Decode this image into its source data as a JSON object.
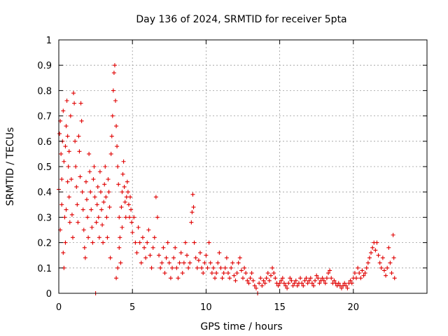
{
  "chart_data": {
    "type": "scatter",
    "title": "Day 136 of 2024, SRMTID for receiver 5pta",
    "xlabel": "GPS time / hours",
    "ylabel": "SRMTID / TECUs",
    "xlim": [
      0,
      25
    ],
    "ylim": [
      0,
      1
    ],
    "x_ticks": [
      "0",
      "5",
      "10",
      "15",
      "20"
    ],
    "y_ticks": [
      "0",
      "0.1",
      "0.2",
      "0.3",
      "0.4",
      "0.5",
      "0.6",
      "0.7",
      "0.8",
      "0.9",
      "1"
    ],
    "x_tick_values": [
      0,
      5,
      10,
      15,
      20
    ],
    "y_tick_values": [
      0,
      0.1,
      0.2,
      0.3,
      0.4,
      0.5,
      0.6,
      0.7,
      0.8,
      0.9,
      1
    ],
    "grid": true,
    "marker": "plus",
    "series": [
      {
        "name": "SRMTID",
        "color": "#e00000",
        "points": [
          [
            0.0,
            0.41
          ],
          [
            0.05,
            0.63
          ],
          [
            0.1,
            0.68
          ],
          [
            0.15,
            0.55
          ],
          [
            0.2,
            0.45
          ],
          [
            0.25,
            0.6
          ],
          [
            0.3,
            0.72
          ],
          [
            0.35,
            0.52
          ],
          [
            0.4,
            0.3
          ],
          [
            0.45,
            0.58
          ],
          [
            0.5,
            0.66
          ],
          [
            0.55,
            0.76
          ],
          [
            0.6,
            0.62
          ],
          [
            0.65,
            0.5
          ],
          [
            0.7,
            0.38
          ],
          [
            0.75,
            0.28
          ],
          [
            0.1,
            0.25
          ],
          [
            0.2,
            0.35
          ],
          [
            0.3,
            0.16
          ],
          [
            0.35,
            0.1
          ],
          [
            0.45,
            0.2
          ],
          [
            0.5,
            0.33
          ],
          [
            0.6,
            0.44
          ],
          [
            0.7,
            0.56
          ],
          [
            0.8,
            0.7
          ],
          [
            0.85,
            0.45
          ],
          [
            0.9,
            0.31
          ],
          [
            0.95,
            0.22
          ],
          [
            1.0,
            0.79
          ],
          [
            1.05,
            0.75
          ],
          [
            1.1,
            0.6
          ],
          [
            1.15,
            0.5
          ],
          [
            1.2,
            0.42
          ],
          [
            1.25,
            0.35
          ],
          [
            1.3,
            0.28
          ],
          [
            1.35,
            0.62
          ],
          [
            1.4,
            0.56
          ],
          [
            1.45,
            0.46
          ],
          [
            1.5,
            0.75
          ],
          [
            1.55,
            0.68
          ],
          [
            1.6,
            0.4
          ],
          [
            1.65,
            0.33
          ],
          [
            1.7,
            0.25
          ],
          [
            1.75,
            0.18
          ],
          [
            1.8,
            0.14
          ],
          [
            1.85,
            0.44
          ],
          [
            1.9,
            0.37
          ],
          [
            1.95,
            0.3
          ],
          [
            2.0,
            0.22
          ],
          [
            2.05,
            0.55
          ],
          [
            2.1,
            0.48
          ],
          [
            2.15,
            0.4
          ],
          [
            2.2,
            0.33
          ],
          [
            2.25,
            0.26
          ],
          [
            2.3,
            0.2
          ],
          [
            2.35,
            0.45
          ],
          [
            2.4,
            0.5
          ],
          [
            2.45,
            0.38
          ],
          [
            2.5,
            0.0
          ],
          [
            2.55,
            0.28
          ],
          [
            2.6,
            0.35
          ],
          [
            2.65,
            0.42
          ],
          [
            2.7,
            0.3
          ],
          [
            2.75,
            0.22
          ],
          [
            2.8,
            0.48
          ],
          [
            2.85,
            0.4
          ],
          [
            2.9,
            0.33
          ],
          [
            2.95,
            0.27
          ],
          [
            3.0,
            0.2
          ],
          [
            3.05,
            0.36
          ],
          [
            3.1,
            0.43
          ],
          [
            3.15,
            0.5
          ],
          [
            3.2,
            0.38
          ],
          [
            3.25,
            0.3
          ],
          [
            3.3,
            0.22
          ],
          [
            3.35,
            0.45
          ],
          [
            3.4,
            0.4
          ],
          [
            3.45,
            0.34
          ],
          [
            3.5,
            0.14
          ],
          [
            3.55,
            0.55
          ],
          [
            3.6,
            0.62
          ],
          [
            3.65,
            0.7
          ],
          [
            3.7,
            0.8
          ],
          [
            3.75,
            0.87
          ],
          [
            3.8,
            0.9
          ],
          [
            3.85,
            0.76
          ],
          [
            3.9,
            0.66
          ],
          [
            3.95,
            0.58
          ],
          [
            4.0,
            0.5
          ],
          [
            4.05,
            0.43
          ],
          [
            4.1,
            0.3
          ],
          [
            4.15,
            0.22
          ],
          [
            4.2,
            0.12
          ],
          [
            4.25,
            0.34
          ],
          [
            4.3,
            0.4
          ],
          [
            4.35,
            0.47
          ],
          [
            4.4,
            0.52
          ],
          [
            4.45,
            0.42
          ],
          [
            4.5,
            0.36
          ],
          [
            4.55,
            0.3
          ],
          [
            4.6,
            0.38
          ],
          [
            4.65,
            0.44
          ],
          [
            4.7,
            0.4
          ],
          [
            4.75,
            0.35
          ],
          [
            4.8,
            0.3
          ],
          [
            4.85,
            0.38
          ],
          [
            4.9,
            0.33
          ],
          [
            4.95,
            0.28
          ],
          [
            3.9,
            0.06
          ],
          [
            4.0,
            0.1
          ],
          [
            4.1,
            0.18
          ],
          [
            4.3,
            0.26
          ],
          [
            5.0,
            0.24
          ],
          [
            5.1,
            0.3
          ],
          [
            5.2,
            0.2
          ],
          [
            5.3,
            0.16
          ],
          [
            5.4,
            0.26
          ],
          [
            5.5,
            0.2
          ],
          [
            5.6,
            0.12
          ],
          [
            5.7,
            0.22
          ],
          [
            5.8,
            0.18
          ],
          [
            5.9,
            0.14
          ],
          [
            6.0,
            0.2
          ],
          [
            6.1,
            0.25
          ],
          [
            6.2,
            0.15
          ],
          [
            6.3,
            0.1
          ],
          [
            6.4,
            0.18
          ],
          [
            6.5,
            0.22
          ],
          [
            6.6,
            0.38
          ],
          [
            6.7,
            0.3
          ],
          [
            6.8,
            0.15
          ],
          [
            6.9,
            0.1
          ],
          [
            7.0,
            0.12
          ],
          [
            7.1,
            0.18
          ],
          [
            7.2,
            0.08
          ],
          [
            7.3,
            0.14
          ],
          [
            7.4,
            0.2
          ],
          [
            7.5,
            0.12
          ],
          [
            7.6,
            0.06
          ],
          [
            7.7,
            0.1
          ],
          [
            7.8,
            0.14
          ],
          [
            7.9,
            0.18
          ],
          [
            8.0,
            0.1
          ],
          [
            8.1,
            0.06
          ],
          [
            8.2,
            0.12
          ],
          [
            8.3,
            0.16
          ],
          [
            8.4,
            0.08
          ],
          [
            8.5,
            0.12
          ],
          [
            8.6,
            0.2
          ],
          [
            8.7,
            0.15
          ],
          [
            8.8,
            0.1
          ],
          [
            8.9,
            0.12
          ],
          [
            9.0,
            0.28
          ],
          [
            9.05,
            0.32
          ],
          [
            9.1,
            0.39
          ],
          [
            9.15,
            0.34
          ],
          [
            9.2,
            0.2
          ],
          [
            9.3,
            0.14
          ],
          [
            9.4,
            0.1
          ],
          [
            9.5,
            0.13
          ],
          [
            9.6,
            0.16
          ],
          [
            9.7,
            0.1
          ],
          [
            9.8,
            0.08
          ],
          [
            9.9,
            0.12
          ],
          [
            10.0,
            0.15
          ],
          [
            10.1,
            0.1
          ],
          [
            10.2,
            0.2
          ],
          [
            10.3,
            0.12
          ],
          [
            10.4,
            0.08
          ],
          [
            10.5,
            0.1
          ],
          [
            10.6,
            0.06
          ],
          [
            10.7,
            0.08
          ],
          [
            10.8,
            0.12
          ],
          [
            10.9,
            0.16
          ],
          [
            11.0,
            0.1
          ],
          [
            11.1,
            0.06
          ],
          [
            11.2,
            0.08
          ],
          [
            11.3,
            0.1
          ],
          [
            11.4,
            0.14
          ],
          [
            11.5,
            0.08
          ],
          [
            11.6,
            0.06
          ],
          [
            11.7,
            0.1
          ],
          [
            11.8,
            0.12
          ],
          [
            11.9,
            0.07
          ],
          [
            12.0,
            0.05
          ],
          [
            12.1,
            0.08
          ],
          [
            12.2,
            0.12
          ],
          [
            12.3,
            0.14
          ],
          [
            12.4,
            0.09
          ],
          [
            12.5,
            0.06
          ],
          [
            12.6,
            0.1
          ],
          [
            12.7,
            0.08
          ],
          [
            12.8,
            0.05
          ],
          [
            12.9,
            0.04
          ],
          [
            13.0,
            0.06
          ],
          [
            13.1,
            0.08
          ],
          [
            13.2,
            0.05
          ],
          [
            13.3,
            0.03
          ],
          [
            13.4,
            0.02
          ],
          [
            13.5,
            0.0
          ],
          [
            13.6,
            0.04
          ],
          [
            13.7,
            0.06
          ],
          [
            13.8,
            0.03
          ],
          [
            13.9,
            0.05
          ],
          [
            14.0,
            0.04
          ],
          [
            14.1,
            0.06
          ],
          [
            14.2,
            0.08
          ],
          [
            14.3,
            0.05
          ],
          [
            14.4,
            0.07
          ],
          [
            14.5,
            0.1
          ],
          [
            14.6,
            0.08
          ],
          [
            14.7,
            0.06
          ],
          [
            14.8,
            0.04
          ],
          [
            14.9,
            0.03
          ],
          [
            15.0,
            0.04
          ],
          [
            15.1,
            0.05
          ],
          [
            15.2,
            0.06
          ],
          [
            15.3,
            0.04
          ],
          [
            15.4,
            0.03
          ],
          [
            15.5,
            0.02
          ],
          [
            15.6,
            0.04
          ],
          [
            15.7,
            0.06
          ],
          [
            15.8,
            0.05
          ],
          [
            15.9,
            0.03
          ],
          [
            16.0,
            0.04
          ],
          [
            16.1,
            0.05
          ],
          [
            16.2,
            0.03
          ],
          [
            16.3,
            0.04
          ],
          [
            16.4,
            0.06
          ],
          [
            16.5,
            0.04
          ],
          [
            16.6,
            0.03
          ],
          [
            16.7,
            0.05
          ],
          [
            16.8,
            0.06
          ],
          [
            16.9,
            0.04
          ],
          [
            17.0,
            0.05
          ],
          [
            17.1,
            0.06
          ],
          [
            17.2,
            0.04
          ],
          [
            17.3,
            0.03
          ],
          [
            17.4,
            0.05
          ],
          [
            17.5,
            0.07
          ],
          [
            17.6,
            0.06
          ],
          [
            17.7,
            0.04
          ],
          [
            17.8,
            0.05
          ],
          [
            17.9,
            0.06
          ],
          [
            18.0,
            0.05
          ],
          [
            18.1,
            0.04
          ],
          [
            18.2,
            0.06
          ],
          [
            18.3,
            0.08
          ],
          [
            18.4,
            0.09
          ],
          [
            18.5,
            0.06
          ],
          [
            18.6,
            0.04
          ],
          [
            18.7,
            0.05
          ],
          [
            18.8,
            0.04
          ],
          [
            18.9,
            0.03
          ],
          [
            19.0,
            0.04
          ],
          [
            19.1,
            0.03
          ],
          [
            19.2,
            0.02
          ],
          [
            19.3,
            0.03
          ],
          [
            19.4,
            0.04
          ],
          [
            19.5,
            0.03
          ],
          [
            19.6,
            0.02
          ],
          [
            19.7,
            0.04
          ],
          [
            19.8,
            0.05
          ],
          [
            19.9,
            0.04
          ],
          [
            20.0,
            0.06
          ],
          [
            20.1,
            0.08
          ],
          [
            20.2,
            0.06
          ],
          [
            20.3,
            0.1
          ],
          [
            20.4,
            0.08
          ],
          [
            20.5,
            0.06
          ],
          [
            20.6,
            0.09
          ],
          [
            20.7,
            0.07
          ],
          [
            20.8,
            0.08
          ],
          [
            20.9,
            0.1
          ],
          [
            21.0,
            0.12
          ],
          [
            21.1,
            0.14
          ],
          [
            21.2,
            0.16
          ],
          [
            21.3,
            0.18
          ],
          [
            21.4,
            0.2
          ],
          [
            21.5,
            0.17
          ],
          [
            21.6,
            0.2
          ],
          [
            21.7,
            0.15
          ],
          [
            21.8,
            0.12
          ],
          [
            21.9,
            0.1
          ],
          [
            22.0,
            0.14
          ],
          [
            22.1,
            0.09
          ],
          [
            22.2,
            0.07
          ],
          [
            22.3,
            0.1
          ],
          [
            22.4,
            0.18
          ],
          [
            22.5,
            0.12
          ],
          [
            22.6,
            0.08
          ],
          [
            22.7,
            0.23
          ],
          [
            22.75,
            0.14
          ],
          [
            22.8,
            0.06
          ]
        ]
      }
    ]
  }
}
